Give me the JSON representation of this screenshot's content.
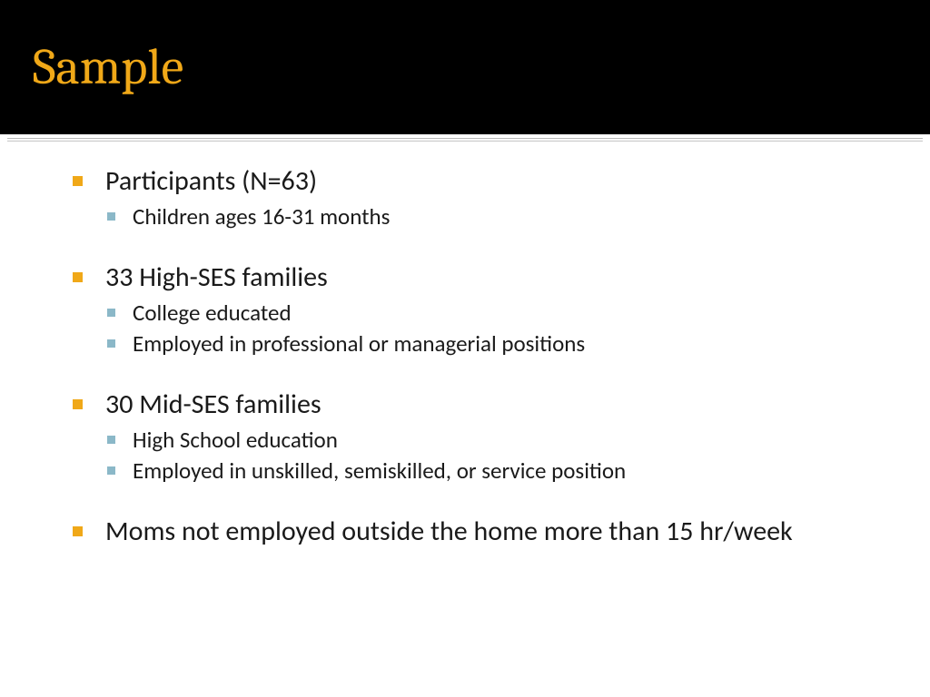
{
  "slide": {
    "title": "Sample",
    "title_color": "#f0a818",
    "title_bg": "#000000",
    "title_fontsize": 56,
    "bullet_l1_color": "#f0a818",
    "bullet_l2_color": "#8bb8c8",
    "body_color": "#1a1a1a",
    "l1_fontsize": 30,
    "l2_fontsize": 25,
    "items": [
      {
        "text": "Participants (N=63)",
        "subitems": [
          {
            "text": "Children ages 16-31 months"
          }
        ]
      },
      {
        "text": "33 High-SES families",
        "subitems": [
          {
            "text": "College educated"
          },
          {
            "text": "Employed in professional or managerial positions"
          }
        ]
      },
      {
        "text": "30 Mid-SES families",
        "subitems": [
          {
            "text": "High School education"
          },
          {
            "text": "Employed in unskilled, semiskilled, or service position"
          }
        ]
      },
      {
        "text": "Moms not employed outside the home more than 15 hr/week",
        "subitems": []
      }
    ]
  }
}
